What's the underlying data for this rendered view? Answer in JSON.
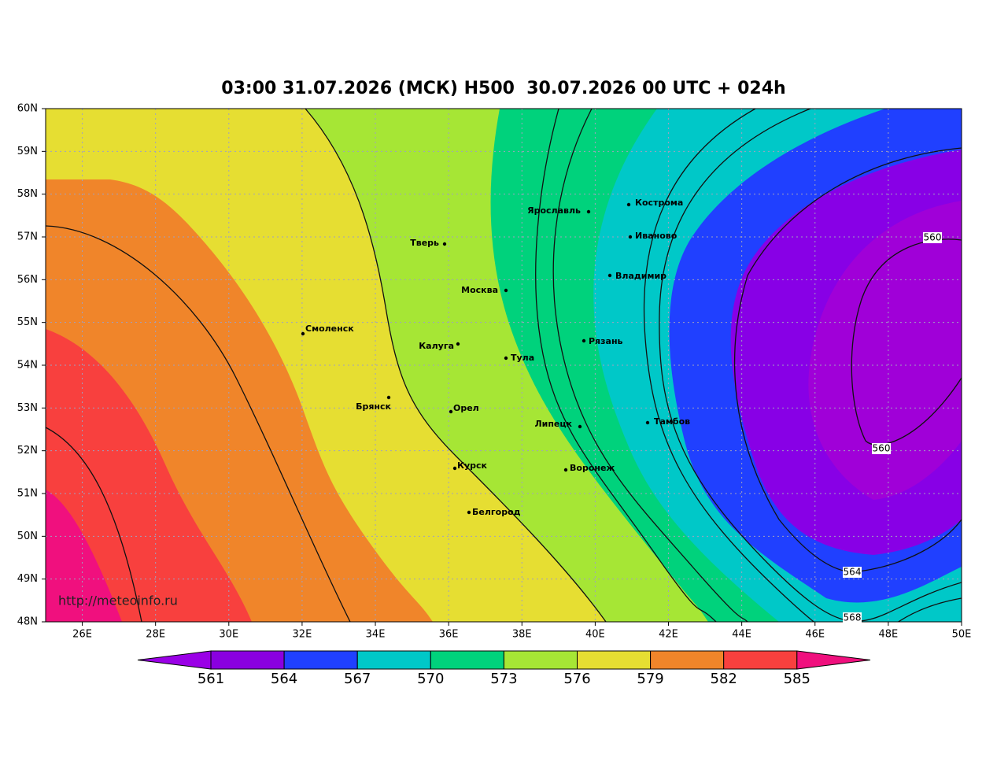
{
  "title": "03:00 31.07.2026 (МСК) H500  30.07.2026 00 UTC + 024h",
  "lat_labels": [
    "60N",
    "59N",
    "58N",
    "57N",
    "56N",
    "55N",
    "54N",
    "53N",
    "52N",
    "51N",
    "50N",
    "49N",
    "48N"
  ],
  "lon_labels": [
    "26E",
    "28E",
    "30E",
    "32E",
    "34E",
    "36E",
    "38E",
    "40E",
    "42E",
    "44E",
    "46E",
    "48E",
    "50E"
  ],
  "cities": [
    "Тверь",
    "Москва",
    "Смоленск",
    "Калуга",
    "Тула",
    "Брянск",
    "Орел",
    "Курск",
    "Белгород",
    "Ярославль",
    "Кострома",
    "Иваново",
    "Владимир",
    "Рязань",
    "Липецк",
    "Тамбов",
    "Воронеж"
  ],
  "contour_labels": [
    "560",
    "560",
    "564",
    "568"
  ],
  "colorbar_labels": [
    "561",
    "564",
    "567",
    "570",
    "573",
    "576",
    "579",
    "582",
    "585"
  ],
  "watermark": "http://meteoinfo.ru"
}
